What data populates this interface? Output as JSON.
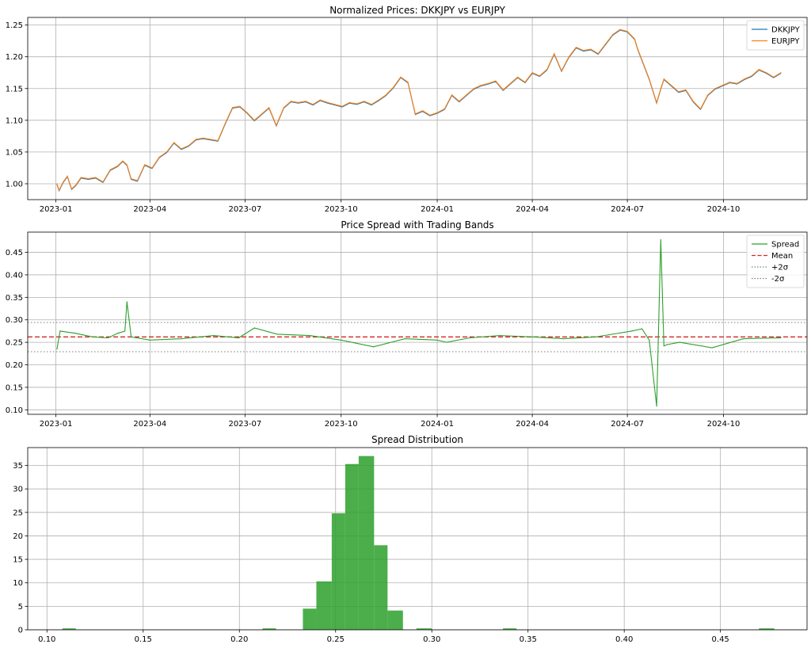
{
  "chart_data": [
    {
      "type": "line",
      "title": "Normalized Prices: DKKJPY vs EURJPY",
      "xlabel": "",
      "ylabel": "",
      "x_ticks": [
        "2023-01",
        "2023-04",
        "2023-07",
        "2023-10",
        "2024-01",
        "2024-04",
        "2024-07",
        "2024-10"
      ],
      "y_ticks": [
        "1.00",
        "1.05",
        "1.10",
        "1.15",
        "1.20",
        "1.25"
      ],
      "xlim": [
        "2022-12-05",
        "2024-12-20"
      ],
      "ylim": [
        0.975,
        1.262
      ],
      "grid": true,
      "legend": "top-right",
      "series": [
        {
          "name": "DKKJPY",
          "color": "#1f77b4"
        },
        {
          "name": "EURJPY",
          "color": "#ff7f0e"
        }
      ],
      "x": [
        "2023-01-02",
        "2023-01-04",
        "2023-01-08",
        "2023-01-12",
        "2023-01-16",
        "2023-01-20",
        "2023-01-25",
        "2023-02-01",
        "2023-02-08",
        "2023-02-15",
        "2023-02-22",
        "2023-03-01",
        "2023-03-06",
        "2023-03-10",
        "2023-03-14",
        "2023-03-20",
        "2023-03-27",
        "2023-04-03",
        "2023-04-10",
        "2023-04-17",
        "2023-04-24",
        "2023-05-01",
        "2023-05-08",
        "2023-05-15",
        "2023-05-22",
        "2023-05-29",
        "2023-06-05",
        "2023-06-12",
        "2023-06-19",
        "2023-06-26",
        "2023-07-03",
        "2023-07-10",
        "2023-07-17",
        "2023-07-24",
        "2023-07-31",
        "2023-08-07",
        "2023-08-14",
        "2023-08-21",
        "2023-08-28",
        "2023-09-04",
        "2023-09-11",
        "2023-09-18",
        "2023-09-25",
        "2023-10-02",
        "2023-10-09",
        "2023-10-16",
        "2023-10-23",
        "2023-10-30",
        "2023-11-06",
        "2023-11-13",
        "2023-11-20",
        "2023-11-27",
        "2023-12-04",
        "2023-12-11",
        "2023-12-18",
        "2023-12-25",
        "2024-01-01",
        "2024-01-08",
        "2024-01-15",
        "2024-01-22",
        "2024-01-29",
        "2024-02-05",
        "2024-02-12",
        "2024-02-19",
        "2024-02-26",
        "2024-03-04",
        "2024-03-11",
        "2024-03-18",
        "2024-03-25",
        "2024-04-01",
        "2024-04-08",
        "2024-04-15",
        "2024-04-22",
        "2024-04-29",
        "2024-05-06",
        "2024-05-13",
        "2024-05-20",
        "2024-05-27",
        "2024-06-03",
        "2024-06-10",
        "2024-06-17",
        "2024-06-24",
        "2024-07-01",
        "2024-07-08",
        "2024-07-11",
        "2024-07-15",
        "2024-07-22",
        "2024-07-29",
        "2024-08-02",
        "2024-08-05",
        "2024-08-12",
        "2024-08-19",
        "2024-08-26",
        "2024-09-02",
        "2024-09-09",
        "2024-09-16",
        "2024-09-23",
        "2024-09-30",
        "2024-10-07",
        "2024-10-14",
        "2024-10-21",
        "2024-10-28",
        "2024-11-04",
        "2024-11-11",
        "2024-11-18",
        "2024-11-25"
      ],
      "values": [
        1.0,
        0.99,
        1.003,
        1.012,
        0.992,
        0.998,
        1.01,
        1.008,
        1.01,
        1.003,
        1.022,
        1.028,
        1.036,
        1.03,
        1.008,
        1.005,
        1.03,
        1.025,
        1.042,
        1.05,
        1.065,
        1.055,
        1.06,
        1.07,
        1.072,
        1.07,
        1.068,
        1.095,
        1.12,
        1.122,
        1.112,
        1.1,
        1.11,
        1.12,
        1.092,
        1.12,
        1.13,
        1.128,
        1.13,
        1.125,
        1.132,
        1.128,
        1.125,
        1.122,
        1.128,
        1.126,
        1.13,
        1.125,
        1.132,
        1.14,
        1.152,
        1.168,
        1.16,
        1.11,
        1.115,
        1.108,
        1.112,
        1.118,
        1.14,
        1.13,
        1.14,
        1.15,
        1.155,
        1.158,
        1.162,
        1.148,
        1.158,
        1.168,
        1.16,
        1.175,
        1.17,
        1.18,
        1.205,
        1.178,
        1.2,
        1.215,
        1.21,
        1.212,
        1.205,
        1.22,
        1.235,
        1.243,
        1.24,
        1.228,
        1.212,
        1.195,
        1.165,
        1.128,
        1.15,
        1.165,
        1.155,
        1.145,
        1.148,
        1.13,
        1.118,
        1.14,
        1.15,
        1.155,
        1.16,
        1.158,
        1.165,
        1.17,
        1.18,
        1.175,
        1.168,
        1.175
      ]
    },
    {
      "type": "line",
      "title": "Price Spread with Trading Bands",
      "xlabel": "",
      "ylabel": "",
      "x_ticks": [
        "2023-01",
        "2023-04",
        "2023-07",
        "2023-10",
        "2024-01",
        "2024-04",
        "2024-07",
        "2024-10"
      ],
      "y_ticks": [
        "0.10",
        "0.15",
        "0.20",
        "0.25",
        "0.30",
        "0.35",
        "0.40",
        "0.45"
      ],
      "xlim": [
        "2022-12-05",
        "2024-12-20"
      ],
      "ylim": [
        0.09,
        0.495
      ],
      "grid": true,
      "legend": "top-right",
      "series": [
        {
          "name": "Spread",
          "color": "#2ca02c",
          "style": "solid"
        },
        {
          "name": "Mean",
          "color": "#d62728",
          "style": "dashed",
          "value": 0.262
        },
        {
          "name": "+2σ",
          "color": "#7f7f7f",
          "style": "dotted",
          "value": 0.294
        },
        {
          "name": "-2σ",
          "color": "#7f7f7f",
          "style": "dotted",
          "value": 0.229
        }
      ],
      "x": [
        "2023-01-02",
        "2023-01-05",
        "2023-01-20",
        "2023-02-05",
        "2023-02-20",
        "2023-03-01",
        "2023-03-08",
        "2023-03-10",
        "2023-03-14",
        "2023-04-01",
        "2023-05-01",
        "2023-06-01",
        "2023-06-25",
        "2023-07-10",
        "2023-08-01",
        "2023-09-01",
        "2023-10-01",
        "2023-11-01",
        "2023-12-01",
        "2024-01-01",
        "2024-01-10",
        "2024-02-01",
        "2024-03-01",
        "2024-04-01",
        "2024-05-01",
        "2024-06-01",
        "2024-07-05",
        "2024-07-15",
        "2024-07-22",
        "2024-07-29",
        "2024-08-02",
        "2024-08-05",
        "2024-08-08",
        "2024-08-20",
        "2024-09-20",
        "2024-10-20",
        "2024-11-25"
      ],
      "values": [
        0.235,
        0.275,
        0.27,
        0.262,
        0.26,
        0.27,
        0.275,
        0.34,
        0.262,
        0.255,
        0.258,
        0.265,
        0.26,
        0.282,
        0.268,
        0.265,
        0.255,
        0.24,
        0.258,
        0.255,
        0.25,
        0.26,
        0.265,
        0.262,
        0.258,
        0.262,
        0.275,
        0.28,
        0.255,
        0.108,
        0.478,
        0.242,
        0.245,
        0.25,
        0.238,
        0.258,
        0.26
      ]
    },
    {
      "type": "histogram",
      "title": "Spread Distribution",
      "xlabel": "",
      "ylabel": "",
      "x_ticks": [
        "0.10",
        "0.15",
        "0.20",
        "0.25",
        "0.30",
        "0.35",
        "0.40",
        "0.45"
      ],
      "y_ticks": [
        "0",
        "5",
        "10",
        "15",
        "20",
        "25",
        "30",
        "35"
      ],
      "xlim": [
        0.09,
        0.495
      ],
      "ylim": [
        0,
        38.8
      ],
      "grid": true,
      "color": "#2ca02c",
      "bins": [
        {
          "from": 0.108,
          "to": 0.115,
          "count": 0.3
        },
        {
          "from": 0.212,
          "to": 0.219,
          "count": 0.3
        },
        {
          "from": 0.233,
          "to": 0.24,
          "count": 4.5
        },
        {
          "from": 0.24,
          "to": 0.248,
          "count": 10.3
        },
        {
          "from": 0.248,
          "to": 0.255,
          "count": 24.8
        },
        {
          "from": 0.255,
          "to": 0.262,
          "count": 35.3
        },
        {
          "from": 0.262,
          "to": 0.27,
          "count": 37.0
        },
        {
          "from": 0.27,
          "to": 0.277,
          "count": 18.0
        },
        {
          "from": 0.277,
          "to": 0.285,
          "count": 4.1
        },
        {
          "from": 0.292,
          "to": 0.3,
          "count": 0.3
        },
        {
          "from": 0.337,
          "to": 0.344,
          "count": 0.3
        },
        {
          "from": 0.47,
          "to": 0.478,
          "count": 0.3
        }
      ]
    }
  ]
}
